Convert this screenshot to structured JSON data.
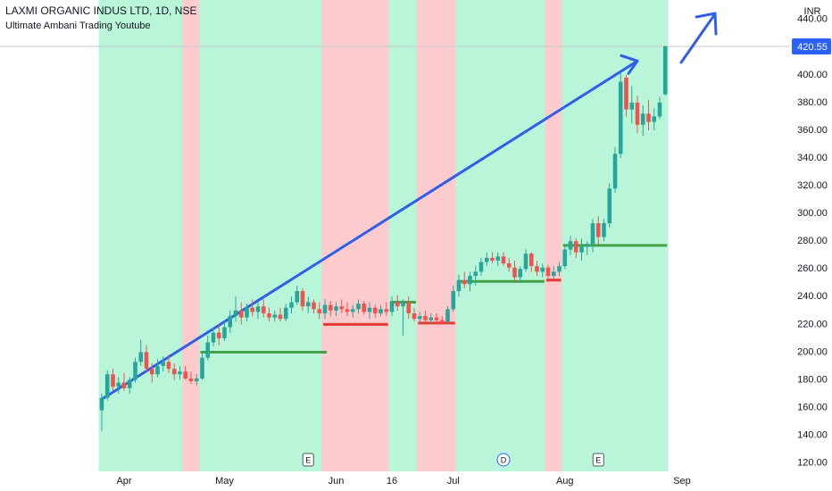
{
  "chart_data": {
    "type": "candlestick",
    "title": "LAXMI ORGANIC INDUS LTD, 1D, NSE",
    "subtitle": "Ultimate Ambani Trading Youtube",
    "currency": "INR",
    "last_price": 420.55,
    "up_color": "#26a69a",
    "down_color": "#ef5350",
    "ylim": [
      114,
      454
    ],
    "yticks": [
      120,
      140,
      160,
      180,
      200,
      220,
      240,
      260,
      280,
      300,
      320,
      340,
      360,
      380,
      400,
      420,
      440
    ],
    "xticks": [
      {
        "value": 4,
        "label": "Apr"
      },
      {
        "value": 22,
        "label": "May"
      },
      {
        "value": 42,
        "label": "Jun"
      },
      {
        "value": 52,
        "label": "16"
      },
      {
        "value": 63,
        "label": "Jul"
      },
      {
        "value": 83,
        "label": "Aug"
      },
      {
        "value": 104,
        "label": "Sep"
      }
    ],
    "grid": false,
    "open": [
      158,
      167,
      184,
      175,
      178,
      174,
      180,
      193,
      200,
      188,
      184,
      190,
      193,
      188,
      184,
      186,
      181,
      179,
      181,
      196,
      207,
      214,
      210,
      218,
      226,
      230,
      225,
      232,
      229,
      233,
      228,
      225,
      227,
      224,
      232,
      236,
      244,
      233,
      236,
      231,
      228,
      234,
      230,
      233,
      231,
      229,
      231,
      235,
      229,
      232,
      228,
      231,
      229,
      236,
      233,
      236,
      228,
      224,
      226,
      223,
      225,
      223,
      222,
      231,
      244,
      252,
      249,
      255,
      258,
      265,
      268,
      266,
      269,
      264,
      261,
      254,
      260,
      271,
      262,
      258,
      261,
      255,
      258,
      262,
      274,
      280,
      272,
      276,
      278,
      293,
      283,
      293,
      318,
      343,
      398,
      375,
      380,
      364,
      372,
      366,
      370,
      386
    ],
    "high": [
      170,
      187,
      188,
      182,
      185,
      182,
      196,
      209,
      205,
      192,
      195,
      197,
      198,
      192,
      190,
      190,
      186,
      184,
      199,
      212,
      218,
      220,
      222,
      230,
      240,
      236,
      235,
      238,
      236,
      238,
      232,
      230,
      232,
      235,
      240,
      248,
      246,
      240,
      238,
      236,
      238,
      237,
      236,
      238,
      236,
      234,
      238,
      237,
      236,
      234,
      234,
      236,
      240,
      241,
      238,
      240,
      232,
      229,
      230,
      228,
      228,
      226,
      233,
      248,
      256,
      258,
      258,
      262,
      268,
      272,
      272,
      272,
      272,
      268,
      266,
      262,
      274,
      272,
      266,
      264,
      263,
      262,
      265,
      276,
      284,
      282,
      282,
      280,
      296,
      298,
      296,
      322,
      348,
      402,
      400,
      392,
      385,
      378,
      382,
      376,
      384,
      421
    ],
    "low": [
      143,
      165,
      172,
      170,
      172,
      170,
      178,
      190,
      185,
      178,
      182,
      186,
      185,
      180,
      180,
      180,
      177,
      176,
      180,
      194,
      204,
      205,
      208,
      214,
      222,
      220,
      222,
      226,
      224,
      225,
      222,
      222,
      222,
      222,
      228,
      234,
      230,
      228,
      228,
      224,
      224,
      226,
      226,
      228,
      226,
      225,
      228,
      227,
      224,
      225,
      226,
      226,
      226,
      230,
      212,
      224,
      222,
      220,
      222,
      220,
      221,
      220,
      220,
      229,
      240,
      246,
      244,
      248,
      255,
      262,
      264,
      262,
      262,
      258,
      250,
      250,
      258,
      258,
      255,
      254,
      252,
      253,
      255,
      260,
      270,
      268,
      266,
      270,
      272,
      278,
      280,
      290,
      315,
      340,
      370,
      365,
      358,
      356,
      360,
      360,
      368,
      385
    ],
    "close": [
      167,
      184,
      175,
      178,
      174,
      180,
      193,
      200,
      188,
      184,
      190,
      193,
      188,
      184,
      186,
      181,
      179,
      181,
      196,
      207,
      214,
      210,
      218,
      226,
      230,
      225,
      232,
      229,
      233,
      228,
      225,
      227,
      224,
      232,
      236,
      244,
      233,
      236,
      231,
      228,
      234,
      230,
      233,
      231,
      229,
      231,
      235,
      229,
      232,
      228,
      231,
      229,
      236,
      233,
      236,
      228,
      224,
      226,
      223,
      225,
      223,
      222,
      231,
      244,
      252,
      249,
      255,
      258,
      265,
      268,
      266,
      269,
      264,
      261,
      254,
      260,
      271,
      262,
      258,
      261,
      255,
      258,
      262,
      274,
      280,
      272,
      276,
      278,
      293,
      283,
      293,
      318,
      343,
      395,
      375,
      380,
      364,
      372,
      366,
      370,
      380,
      420.55
    ],
    "bands": [
      {
        "start": 0,
        "end": 14,
        "color": "#b9f5d9"
      },
      {
        "start": 15,
        "end": 17,
        "color": "#fbcbcd"
      },
      {
        "start": 18,
        "end": 39,
        "color": "#b9f5d9"
      },
      {
        "start": 40,
        "end": 51,
        "color": "#fbcbcd"
      },
      {
        "start": 52,
        "end": 56,
        "color": "#b9f5d9"
      },
      {
        "start": 57,
        "end": 63,
        "color": "#fbcbcd"
      },
      {
        "start": 64,
        "end": 79,
        "color": "#b9f5d9"
      },
      {
        "start": 80,
        "end": 82,
        "color": "#fbcbcd"
      },
      {
        "start": 83,
        "end": 101,
        "color": "#b9f5d9"
      }
    ],
    "levels": [
      {
        "value": 200,
        "start": 18,
        "end": 40,
        "color": "#43a047"
      },
      {
        "value": 220,
        "start": 40,
        "end": 51,
        "color": "#e53935"
      },
      {
        "value": 236,
        "start": 52,
        "end": 56,
        "color": "#43a047"
      },
      {
        "value": 221,
        "start": 57,
        "end": 63,
        "color": "#e53935"
      },
      {
        "value": 251,
        "start": 64,
        "end": 79,
        "color": "#43a047"
      },
      {
        "value": 252,
        "start": 80,
        "end": 82,
        "color": "#e53935"
      },
      {
        "value": 277,
        "start": 83,
        "end": 101,
        "color": "#43a047"
      }
    ],
    "events": [
      {
        "label": "E",
        "index": 37
      },
      {
        "label": "D",
        "index": 72
      },
      {
        "label": "E",
        "index": 89
      }
    ],
    "trend_line": {
      "start": 0,
      "from": 166,
      "end": 96,
      "to": 410,
      "color": "#2f5fe8"
    }
  }
}
